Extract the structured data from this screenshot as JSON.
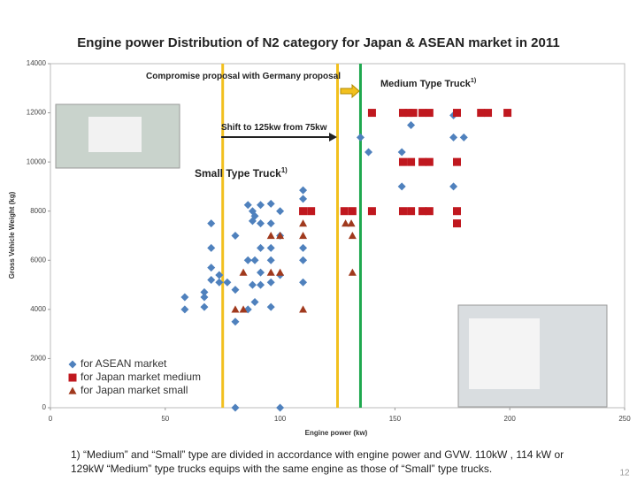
{
  "chart_data": {
    "type": "scatter",
    "title": "Engine power Distribution of N2 category for Japan & ASEAN market in 2011",
    "xlabel": "Engine power (kw)",
    "ylabel": "Gross Vehicle Weight (kg)",
    "xlim": [
      0,
      250
    ],
    "xticks": [
      0,
      50,
      100,
      150,
      200,
      250
    ],
    "ylim": [
      0,
      14000
    ],
    "yticks": [
      0,
      2000,
      4000,
      6000,
      8000,
      10000,
      12000,
      14000
    ],
    "legend": "lower left",
    "vlines": [
      {
        "x": 75,
        "color": "#f2c01e"
      },
      {
        "x": 125,
        "color": "#f2c01e"
      },
      {
        "x": 135,
        "color": "#1fa84f"
      }
    ],
    "annotations": [
      {
        "text": "Compromise proposal  with Germany proposal"
      },
      {
        "text": "Medium Type Truck",
        "sup": "1)"
      },
      {
        "text": "Shift to 125kw from 75kw"
      },
      {
        "text": "Small Type Truck",
        "sup": "1)"
      }
    ],
    "series": [
      {
        "name": "for ASEAN market",
        "color": "#4f81bd",
        "marker": "diamond",
        "x": [
          58.5,
          58.5,
          67,
          67,
          67,
          70,
          70,
          70,
          70,
          73.5,
          73.5,
          77,
          80.5,
          80.5,
          80.5,
          80.5,
          86,
          86,
          86,
          88,
          88,
          88,
          89,
          89,
          89,
          91.5,
          91.5,
          91.5,
          91.5,
          91.5,
          96,
          96,
          96,
          96,
          96,
          96,
          100,
          100,
          100,
          100,
          110,
          110,
          110,
          110,
          110,
          135,
          138.5,
          153,
          153,
          157,
          175.5,
          175.5,
          175.5,
          180
        ],
        "y": [
          4500,
          4000,
          4700,
          4500,
          4100,
          7500,
          6500,
          5700,
          5200,
          5400,
          5100,
          5100,
          7000,
          4800,
          3500,
          0,
          8250,
          6000,
          4000,
          8000,
          7600,
          5000,
          7800,
          6000,
          4300,
          8250,
          7500,
          6500,
          5500,
          5000,
          8300,
          7500,
          6500,
          6000,
          5100,
          4100,
          8000,
          7000,
          5400,
          0,
          8850,
          8500,
          6500,
          6000,
          5100,
          11000,
          10400,
          10400,
          9000,
          11500,
          11900,
          11000,
          9000,
          11000
        ]
      },
      {
        "name": "for Japan market medium",
        "color": "#c0181f",
        "marker": "square",
        "x": [
          140,
          153.5,
          156,
          158,
          162,
          165,
          177,
          187.5,
          190.5,
          199,
          153.5,
          157,
          162,
          165,
          177,
          110,
          113.5,
          128,
          131.5,
          140,
          153.5,
          157,
          162,
          165,
          177,
          177
        ],
        "y": [
          12000,
          12000,
          12000,
          12000,
          12000,
          12000,
          12000,
          12000,
          12000,
          12000,
          10000,
          10000,
          10000,
          10000,
          10000,
          8000,
          8000,
          8000,
          8000,
          8000,
          8000,
          8000,
          8000,
          8000,
          8000,
          7500
        ]
      },
      {
        "name": "for Japan market small",
        "color": "#a0391d",
        "marker": "triangle",
        "x": [
          80.5,
          84,
          84,
          96,
          100,
          96,
          100,
          110,
          110,
          110,
          128.5,
          131,
          131.5,
          131.5
        ],
        "y": [
          4000,
          4000,
          5500,
          7000,
          7000,
          5500,
          5500,
          7500,
          7000,
          4000,
          7500,
          7500,
          7000,
          5500
        ]
      }
    ]
  },
  "footnote": [
    "1) “Medium” and “Small” type are divided in accordance with engine power and GVW.  110kW , 114 kW or",
    "129kW “Medium” type trucks equips with the same engine as  those of “Small” type trucks."
  ],
  "page_number": "12"
}
